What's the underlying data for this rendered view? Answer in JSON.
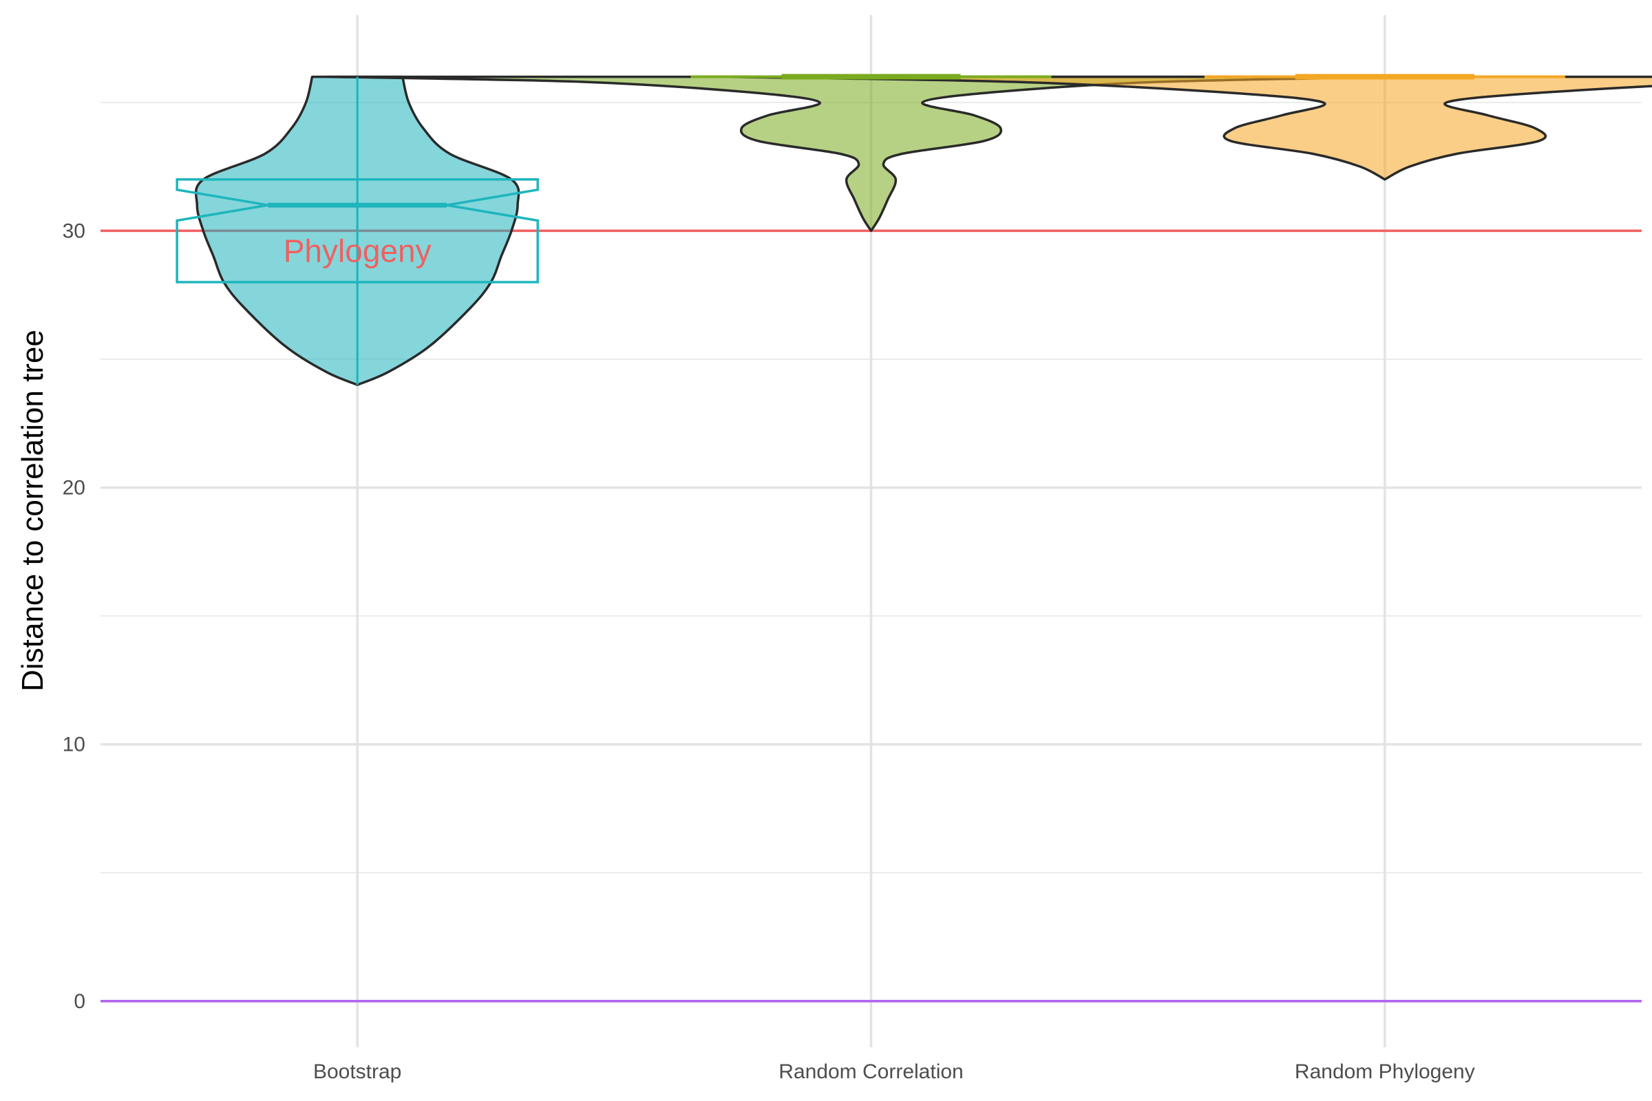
{
  "chart_data": {
    "type": "violin",
    "title": "",
    "xlabel": "",
    "ylabel": "Distance to correlation tree",
    "ylim": [
      -1.8,
      38.4
    ],
    "y_ticks": [
      0,
      10,
      20,
      30
    ],
    "grid": true,
    "legend": "none",
    "categories": [
      "Bootstrap",
      "Random Correlation",
      "Random Phylogeny"
    ],
    "series": [
      {
        "name": "Bootstrap",
        "color": "#1fb5bd",
        "box": {
          "q1": 28,
          "median": 31,
          "q3": 32,
          "notch_low": 30.4,
          "notch_high": 31.6
        },
        "violin": [
          [
            24,
            0.0
          ],
          [
            24.5,
            0.15
          ],
          [
            25.5,
            0.35
          ],
          [
            27,
            0.55
          ],
          [
            28,
            0.65
          ],
          [
            29,
            0.7
          ],
          [
            30,
            0.75
          ],
          [
            31,
            0.78
          ],
          [
            32,
            0.75
          ],
          [
            33,
            0.45
          ],
          [
            34,
            0.32
          ],
          [
            35,
            0.25
          ],
          [
            36,
            0.22
          ]
        ]
      },
      {
        "name": "Random Correlation",
        "color": "#7aab1f",
        "box": {
          "median": 36,
          "q1": 36,
          "q3": 36
        },
        "violin": [
          [
            30,
            0.0
          ],
          [
            30.5,
            0.04
          ],
          [
            31.2,
            0.08
          ],
          [
            32,
            0.12
          ],
          [
            32.6,
            0.06
          ],
          [
            33,
            0.15
          ],
          [
            33.5,
            0.55
          ],
          [
            34,
            0.63
          ],
          [
            34.5,
            0.5
          ],
          [
            35,
            0.25
          ],
          [
            35.4,
            0.6
          ],
          [
            35.8,
            1.4
          ],
          [
            36,
            2.65
          ]
        ]
      },
      {
        "name": "Random Phylogeny",
        "color": "#f5a623",
        "box": {
          "median": 36,
          "q1": 36,
          "q3": 36
        },
        "violin": [
          [
            32,
            0.0
          ],
          [
            32.5,
            0.12
          ],
          [
            33,
            0.35
          ],
          [
            33.5,
            0.75
          ],
          [
            34,
            0.73
          ],
          [
            34.5,
            0.5
          ],
          [
            35,
            0.3
          ],
          [
            35.4,
            0.8
          ],
          [
            35.8,
            1.8
          ],
          [
            36,
            3.2
          ]
        ]
      }
    ],
    "reference_lines": [
      {
        "value": 30,
        "color": "#f06060",
        "label": "Phylogeny"
      },
      {
        "value": 0,
        "color": "#b260f0",
        "label": ""
      }
    ]
  }
}
